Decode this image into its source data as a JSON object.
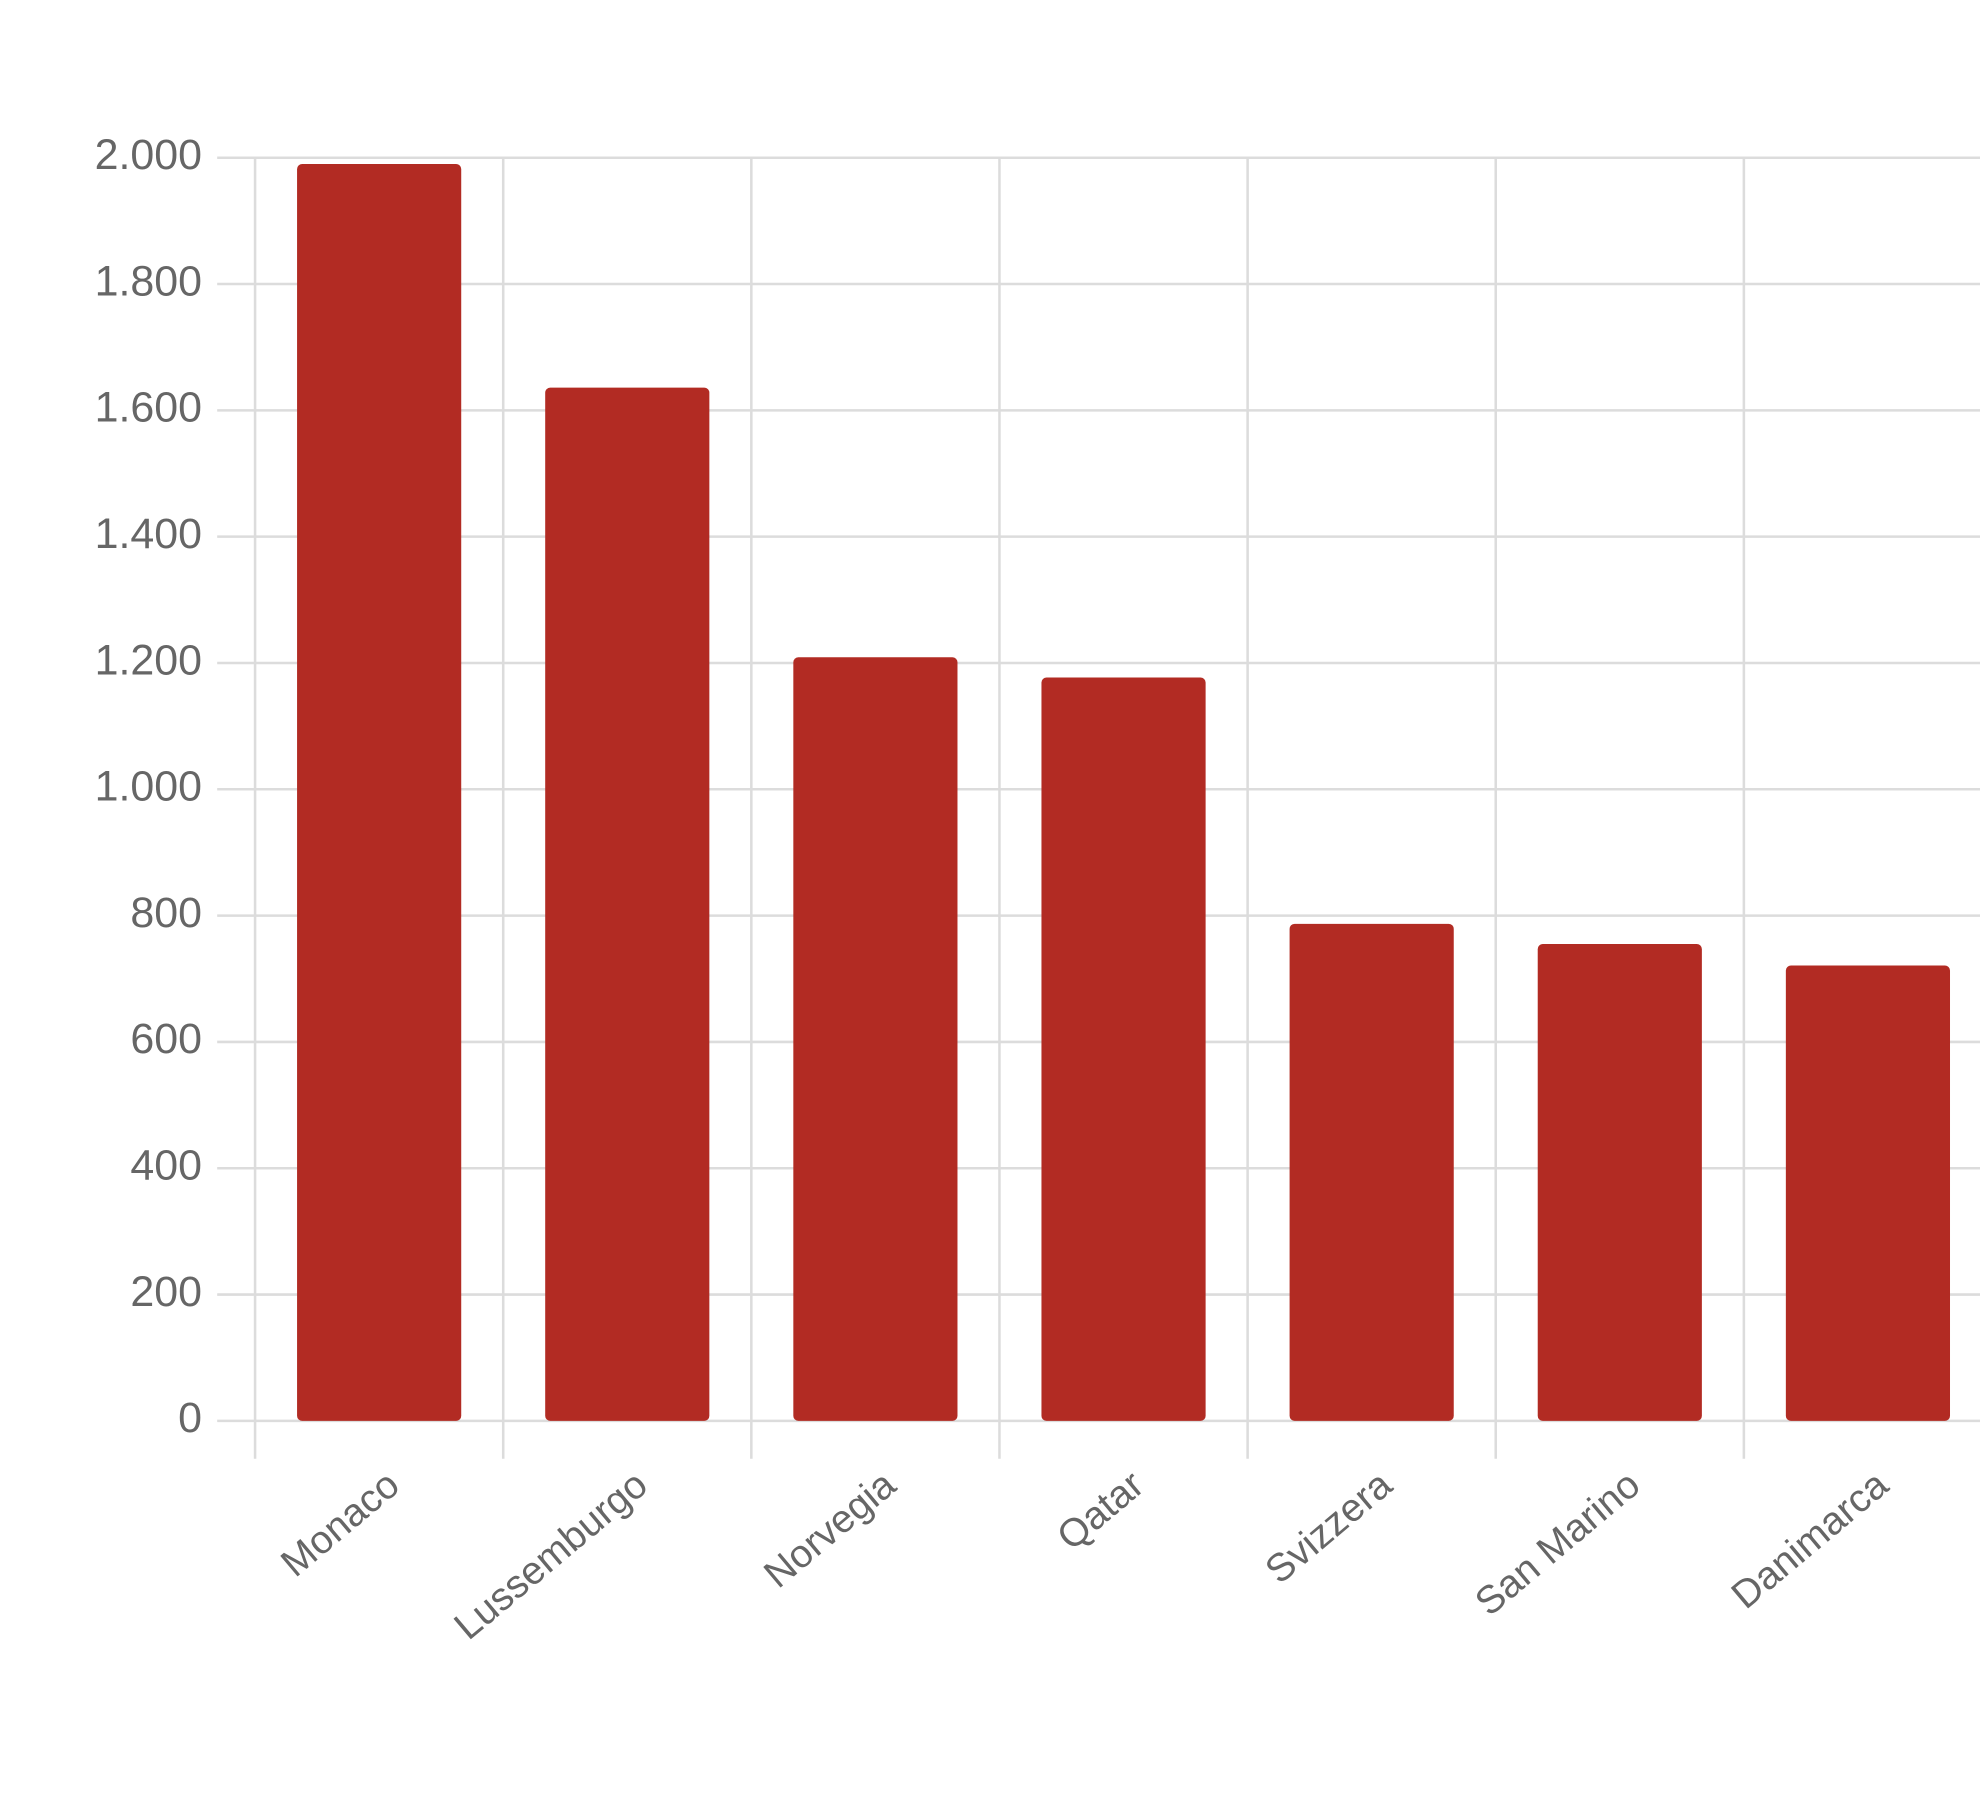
{
  "chart_data": {
    "type": "bar",
    "categories": [
      "Monaco",
      "Lussemburgo",
      "Norvegia",
      "Qatar",
      "Svizzera",
      "San Marino",
      "Danimarca"
    ],
    "values": [
      1990,
      1636,
      1209,
      1177,
      787,
      755,
      721
    ],
    "color": "#b22b23",
    "ylim": [
      0,
      2000
    ],
    "yticks": [
      0,
      200,
      400,
      600,
      800,
      {
        "value": 1000,
        "label": "1.000"
      },
      {
        "value": 1200,
        "label": "1.200"
      },
      {
        "value": 1400,
        "label": "1.400"
      },
      {
        "value": 1600,
        "label": "1.600"
      },
      {
        "value": 1800,
        "label": "1.800"
      },
      {
        "value": 2000,
        "label": "2.000"
      }
    ],
    "grid": true
  }
}
